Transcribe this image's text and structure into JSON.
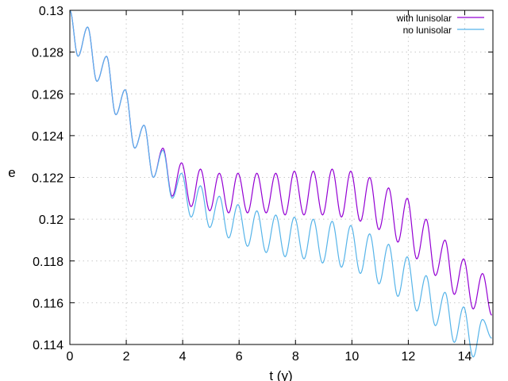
{
  "chart_data": {
    "type": "line",
    "xlabel": "t (y)",
    "ylabel": "e",
    "xlim": [
      0,
      15
    ],
    "ylim": [
      0.114,
      0.13
    ],
    "x_ticks": [
      "0",
      "2",
      "4",
      "6",
      "8",
      "10",
      "12",
      "14"
    ],
    "y_ticks": [
      "0.114",
      "0.116",
      "0.118",
      "0.12",
      "0.122",
      "0.124",
      "0.126",
      "0.128",
      "0.13"
    ],
    "grid": true,
    "legend_position": "top-right",
    "series": [
      {
        "name": "with lunisolar",
        "color": "#9400d3",
        "x": [
          0.0,
          0.29,
          0.63,
          0.96,
          1.3,
          1.63,
          1.96,
          2.3,
          2.63,
          2.96,
          3.3,
          3.63,
          3.96,
          4.3,
          4.63,
          4.96,
          5.3,
          5.63,
          5.96,
          6.3,
          6.63,
          6.96,
          7.3,
          7.63,
          7.96,
          8.3,
          8.63,
          8.96,
          9.3,
          9.63,
          9.96,
          10.3,
          10.63,
          10.96,
          11.3,
          11.63,
          11.96,
          12.3,
          12.63,
          12.96,
          13.3,
          13.63,
          13.96,
          14.3,
          14.63,
          14.96
        ],
        "y": [
          0.13,
          0.1278,
          0.1292,
          0.1266,
          0.1278,
          0.125,
          0.1262,
          0.1234,
          0.1245,
          0.122,
          0.1234,
          0.1211,
          0.1227,
          0.1206,
          0.1224,
          0.1204,
          0.1222,
          0.1203,
          0.1222,
          0.1203,
          0.1222,
          0.1203,
          0.1222,
          0.1202,
          0.1223,
          0.1202,
          0.1223,
          0.1202,
          0.1224,
          0.1201,
          0.1223,
          0.1199,
          0.122,
          0.1195,
          0.1215,
          0.1189,
          0.121,
          0.1181,
          0.12,
          0.1173,
          0.119,
          0.1164,
          0.1181,
          0.1157,
          0.1174,
          0.1154
        ]
      },
      {
        "name": "no lunisolar",
        "color": "#56b4e9",
        "x": [
          0.0,
          0.29,
          0.63,
          0.96,
          1.3,
          1.63,
          1.96,
          2.3,
          2.63,
          2.96,
          3.3,
          3.63,
          3.96,
          4.3,
          4.63,
          4.96,
          5.3,
          5.63,
          5.96,
          6.3,
          6.63,
          6.96,
          7.3,
          7.63,
          7.96,
          8.3,
          8.63,
          8.96,
          9.3,
          9.63,
          9.96,
          10.3,
          10.63,
          10.96,
          11.3,
          11.63,
          11.96,
          12.3,
          12.63,
          12.96,
          13.3,
          13.63,
          13.96,
          14.3,
          14.63,
          14.96
        ],
        "y": [
          0.13,
          0.1278,
          0.1292,
          0.1266,
          0.1278,
          0.125,
          0.1262,
          0.1234,
          0.1245,
          0.122,
          0.1233,
          0.121,
          0.1222,
          0.1201,
          0.1216,
          0.1196,
          0.1211,
          0.1191,
          0.1207,
          0.1187,
          0.1204,
          0.1184,
          0.1202,
          0.1182,
          0.1201,
          0.1181,
          0.12,
          0.1179,
          0.1199,
          0.1177,
          0.1197,
          0.1174,
          0.1193,
          0.1169,
          0.1188,
          0.1163,
          0.1182,
          0.1156,
          0.1173,
          0.1149,
          0.1165,
          0.1141,
          0.1158,
          0.1134,
          0.1152,
          0.1143
        ]
      }
    ]
  }
}
